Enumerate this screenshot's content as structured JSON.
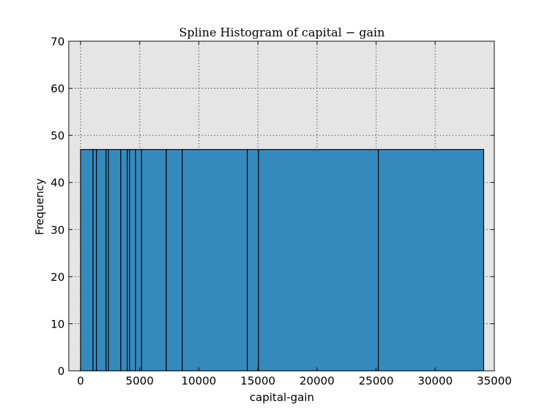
{
  "chart_data": {
    "type": "bar",
    "title": "Spline Histogram of capital − gain",
    "xlabel": "capital-gain",
    "ylabel": "Frequency",
    "xlim": [
      -1000,
      35000
    ],
    "ylim": [
      0,
      70
    ],
    "x_ticks": [
      0,
      5000,
      10000,
      15000,
      20000,
      25000,
      30000,
      35000
    ],
    "x_tick_labels": [
      "0",
      "5000",
      "10000",
      "15000",
      "20000",
      "25000",
      "30000",
      "35000"
    ],
    "y_ticks": [
      0,
      10,
      20,
      30,
      40,
      50,
      60,
      70
    ],
    "y_tick_labels": [
      "0",
      "10",
      "20",
      "30",
      "40",
      "50",
      "60",
      "70"
    ],
    "grid": true,
    "colors": {
      "bar_fill": "#348abd",
      "plot_background": "#e5e5e5"
    },
    "bins": [
      {
        "x0": 0,
        "x1": 1050,
        "value": 47
      },
      {
        "x0": 1050,
        "x1": 1350,
        "value": 47
      },
      {
        "x0": 1350,
        "x1": 2150,
        "value": 47
      },
      {
        "x0": 2150,
        "x1": 2350,
        "value": 47
      },
      {
        "x0": 2350,
        "x1": 3400,
        "value": 47
      },
      {
        "x0": 3400,
        "x1": 3950,
        "value": 47
      },
      {
        "x0": 3950,
        "x1": 4150,
        "value": 47
      },
      {
        "x0": 4150,
        "x1": 4650,
        "value": 47
      },
      {
        "x0": 4650,
        "x1": 5150,
        "value": 47
      },
      {
        "x0": 5150,
        "x1": 7250,
        "value": 47
      },
      {
        "x0": 7250,
        "x1": 8600,
        "value": 47
      },
      {
        "x0": 8600,
        "x1": 14100,
        "value": 47
      },
      {
        "x0": 14100,
        "x1": 15050,
        "value": 47
      },
      {
        "x0": 15050,
        "x1": 25200,
        "value": 47
      },
      {
        "x0": 25200,
        "x1": 34100,
        "value": 47
      }
    ]
  }
}
